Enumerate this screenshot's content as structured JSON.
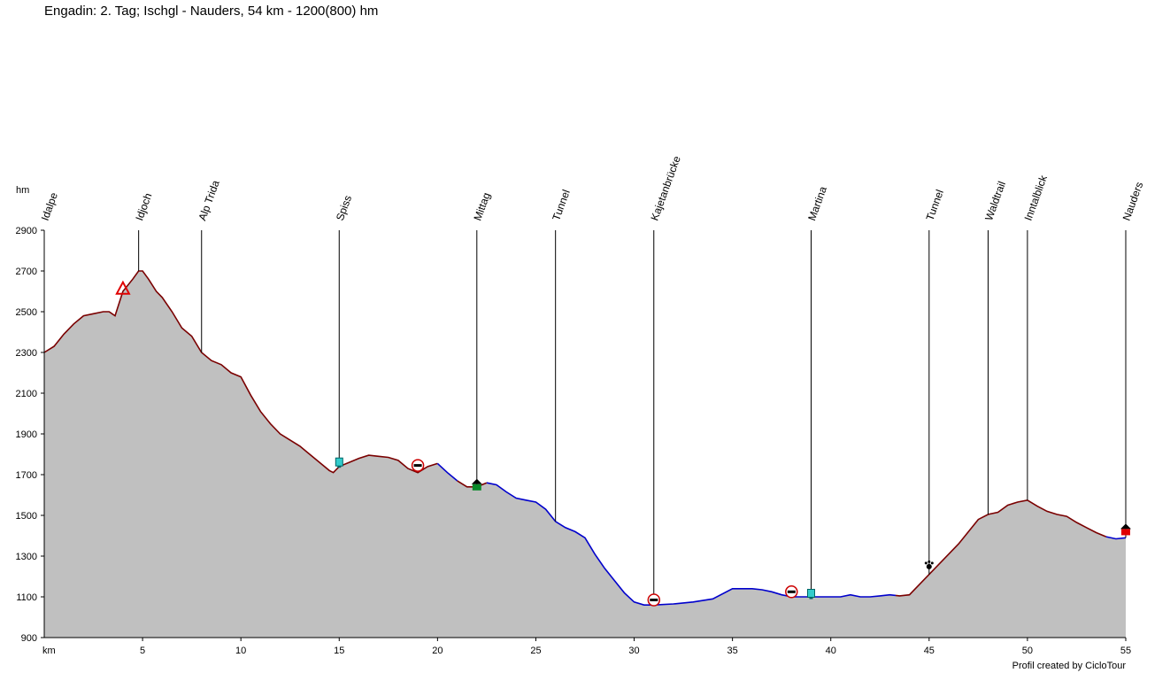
{
  "chart_data": {
    "type": "area",
    "title": "Engadin: 2. Tag; Ischgl - Nauders, 54 km - 1200(800) hm",
    "xlabel": "km",
    "ylabel": "hm",
    "xlim": [
      0,
      55
    ],
    "ylim": [
      900,
      2900
    ],
    "xticks": [
      5,
      10,
      15,
      20,
      25,
      30,
      35,
      40,
      45,
      50,
      55
    ],
    "yticks": [
      900,
      1100,
      1300,
      1500,
      1700,
      1900,
      2100,
      2300,
      2500,
      2700,
      2900
    ],
    "fill_color": "#c0c0c0",
    "segments": [
      {
        "color": "#7a0000",
        "x_range": [
          0,
          20
        ]
      },
      {
        "color": "#0000cc",
        "x_range": [
          20,
          21
        ]
      },
      {
        "color": "#7a0000",
        "x_range": [
          21,
          22.5
        ]
      },
      {
        "color": "#0000cc",
        "x_range": [
          22.5,
          43.3
        ]
      },
      {
        "color": "#7a0000",
        "x_range": [
          43.3,
          54
        ]
      },
      {
        "color": "#0000cc",
        "x_range": [
          54,
          55
        ]
      }
    ],
    "profile": {
      "x": [
        0,
        0.5,
        1,
        1.5,
        2,
        2.5,
        3,
        3.3,
        3.6,
        4,
        4.5,
        4.8,
        5,
        5.3,
        5.7,
        6,
        6.5,
        7,
        7.5,
        8,
        8.5,
        9,
        9.5,
        10,
        10.5,
        11,
        11.5,
        12,
        12.5,
        13,
        13.5,
        14,
        14.5,
        14.7,
        15,
        15.5,
        16,
        16.5,
        17,
        17.5,
        18,
        18.5,
        19,
        19.5,
        20,
        20.5,
        21,
        21.5,
        22,
        22.5,
        23,
        23.5,
        24,
        24.5,
        25,
        25.5,
        26,
        26.5,
        27,
        27.5,
        28,
        28.5,
        29,
        29.5,
        30,
        30.5,
        31,
        32,
        33,
        34,
        35,
        36,
        36.5,
        37,
        37.5,
        38,
        39,
        40,
        40.5,
        41,
        41.5,
        42,
        42.5,
        43,
        43.5,
        44,
        44.5,
        45,
        45.5,
        46,
        46.5,
        47,
        47.5,
        48,
        48.5,
        49,
        49.5,
        50,
        50.5,
        51,
        51.5,
        52,
        52.5,
        53,
        53.5,
        54,
        54.5,
        55
      ],
      "y": [
        2300,
        2330,
        2390,
        2440,
        2480,
        2490,
        2500,
        2500,
        2480,
        2600,
        2660,
        2700,
        2700,
        2660,
        2600,
        2570,
        2500,
        2420,
        2380,
        2300,
        2260,
        2240,
        2200,
        2180,
        2090,
        2010,
        1950,
        1900,
        1870,
        1840,
        1800,
        1760,
        1720,
        1710,
        1740,
        1760,
        1780,
        1795,
        1790,
        1785,
        1770,
        1730,
        1710,
        1740,
        1755,
        1710,
        1670,
        1640,
        1640,
        1660,
        1650,
        1615,
        1585,
        1575,
        1565,
        1530,
        1470,
        1440,
        1420,
        1390,
        1310,
        1240,
        1180,
        1120,
        1075,
        1060,
        1060,
        1065,
        1075,
        1090,
        1140,
        1140,
        1135,
        1125,
        1110,
        1100,
        1100,
        1100,
        1100,
        1110,
        1100,
        1100,
        1105,
        1110,
        1105,
        1110,
        1160,
        1210,
        1260,
        1310,
        1360,
        1420,
        1480,
        1505,
        1515,
        1550,
        1565,
        1575,
        1545,
        1520,
        1505,
        1495,
        1465,
        1440,
        1415,
        1395,
        1385,
        1390
      ]
    },
    "waypoints": [
      {
        "km": 0,
        "label": "Idalpe"
      },
      {
        "km": 4.8,
        "label": "Idjoch"
      },
      {
        "km": 8,
        "label": "Alp Trida"
      },
      {
        "km": 15,
        "label": "Spiss"
      },
      {
        "km": 22,
        "label": "Mittag"
      },
      {
        "km": 26,
        "label": "Tunnel"
      },
      {
        "km": 31,
        "label": "Kajetanbrücke"
      },
      {
        "km": 39,
        "label": "Martina"
      },
      {
        "km": 45,
        "label": "Tunnel"
      },
      {
        "km": 48,
        "label": "Waldtrail"
      },
      {
        "km": 50,
        "label": "Inntalblick"
      },
      {
        "km": 55,
        "label": "Nauders"
      }
    ],
    "markers": [
      {
        "km": 4,
        "elev": 2610,
        "icon": "summit-triangle-icon"
      },
      {
        "km": 15,
        "elev": 1760,
        "icon": "drink-cup-icon"
      },
      {
        "km": 19,
        "elev": 1745,
        "icon": "road-closed-icon"
      },
      {
        "km": 22,
        "elev": 1640,
        "icon": "house-green-icon"
      },
      {
        "km": 31,
        "elev": 1085,
        "icon": "road-closed-icon"
      },
      {
        "km": 38,
        "elev": 1125,
        "icon": "road-closed-icon"
      },
      {
        "km": 39,
        "elev": 1115,
        "icon": "drink-cup-icon"
      },
      {
        "km": 45,
        "elev": 1255,
        "icon": "paw-icon"
      },
      {
        "km": 55,
        "elev": 1420,
        "icon": "house-red-icon"
      }
    ]
  },
  "credit": "Profil created by CicloTour"
}
